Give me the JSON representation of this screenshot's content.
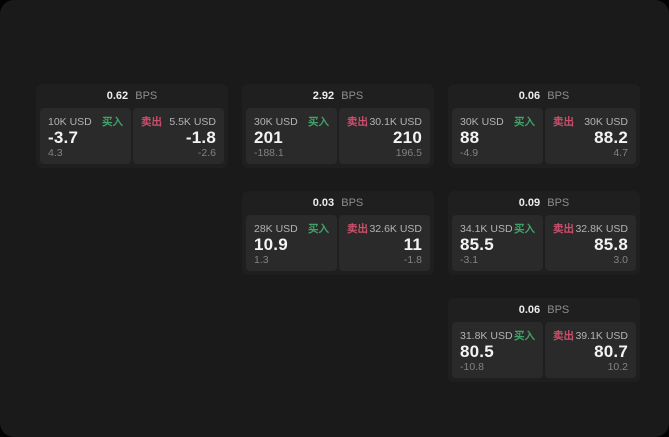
{
  "labels": {
    "bps_unit": "BPS",
    "buy": "买入",
    "sell": "卖出"
  },
  "colors": {
    "background": "#1a1a1a",
    "card": "#1f1f1f",
    "panel": "#2a2a2a",
    "buy_green": "#42a168",
    "sell_pink": "#cb4f6c"
  },
  "cards": [
    {
      "bps": "0.62",
      "buy": {
        "amount": "10K USD",
        "price": "-3.7",
        "sub": "4.3"
      },
      "sell": {
        "amount": "5.5K USD",
        "price": "-1.8",
        "sub": "-2.6"
      }
    },
    {
      "bps": "2.92",
      "buy": {
        "amount": "30K USD",
        "price": "201",
        "sub": "-188.1"
      },
      "sell": {
        "amount": "30.1K USD",
        "price": "210",
        "sub": "196.5"
      }
    },
    {
      "bps": "0.06",
      "buy": {
        "amount": "30K USD",
        "price": "88",
        "sub": "-4.9"
      },
      "sell": {
        "amount": "30K USD",
        "price": "88.2",
        "sub": "4.7"
      }
    },
    {
      "bps": "0.03",
      "buy": {
        "amount": "28K USD",
        "price": "10.9",
        "sub": "1.3"
      },
      "sell": {
        "amount": "32.6K USD",
        "price": "11",
        "sub": "-1.8"
      }
    },
    {
      "bps": "0.09",
      "buy": {
        "amount": "34.1K USD",
        "price": "85.5",
        "sub": "-3.1"
      },
      "sell": {
        "amount": "32.8K USD",
        "price": "85.8",
        "sub": "3.0"
      }
    },
    {
      "bps": "0.06",
      "buy": {
        "amount": "31.8K USD",
        "price": "80.5",
        "sub": "-10.8"
      },
      "sell": {
        "amount": "39.1K USD",
        "price": "80.7",
        "sub": "10.2"
      }
    }
  ]
}
